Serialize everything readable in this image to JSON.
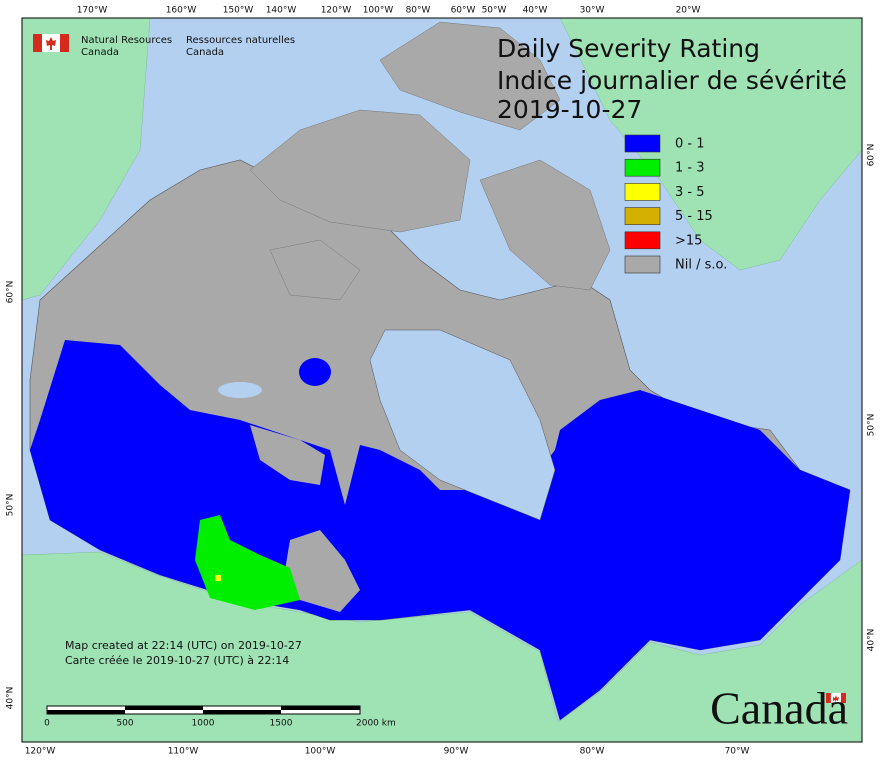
{
  "header": {
    "agency_en": [
      "Natural Resources",
      "Canada"
    ],
    "agency_fr": [
      "Ressources naturelles",
      "Canada"
    ]
  },
  "title": {
    "line1": "Daily Severity Rating",
    "line2": "Indice journalier de sévérité",
    "date": "2019-10-27"
  },
  "legend": {
    "items": [
      {
        "label": "0 - 1",
        "color": "#0000ff"
      },
      {
        "label": "1 - 3",
        "color": "#00ee00"
      },
      {
        "label": "3 - 5",
        "color": "#ffff00"
      },
      {
        "label": "5 - 15",
        "color": "#d4b000"
      },
      {
        "label": ">15",
        "color": "#ff0000"
      },
      {
        "label": "Nil / s.o.",
        "color": "#a9a9a9"
      }
    ]
  },
  "graticule": {
    "top": [
      "170°W",
      "160°W",
      "150°W",
      "140°W",
      "120°W",
      "100°W",
      "80°W",
      "60°W",
      "50°W",
      "40°W",
      "30°W",
      "20°W"
    ],
    "bottom": [
      "120°W",
      "110°W",
      "100°W",
      "90°W",
      "80°W",
      "70°W"
    ],
    "left": [
      "60°N",
      "50°N",
      "40°N"
    ],
    "right": [
      "60°N",
      "50°N",
      "40°N"
    ]
  },
  "notes": [
    "Map created at 22:14 (UTC) on 2019-10-27",
    "Carte créée le 2019-10-27 (UTC) à 22:14"
  ],
  "scale_bar": {
    "labels": [
      "0",
      "500",
      "1000",
      "1500",
      "2000 km"
    ]
  },
  "wordmark": "Canada"
}
